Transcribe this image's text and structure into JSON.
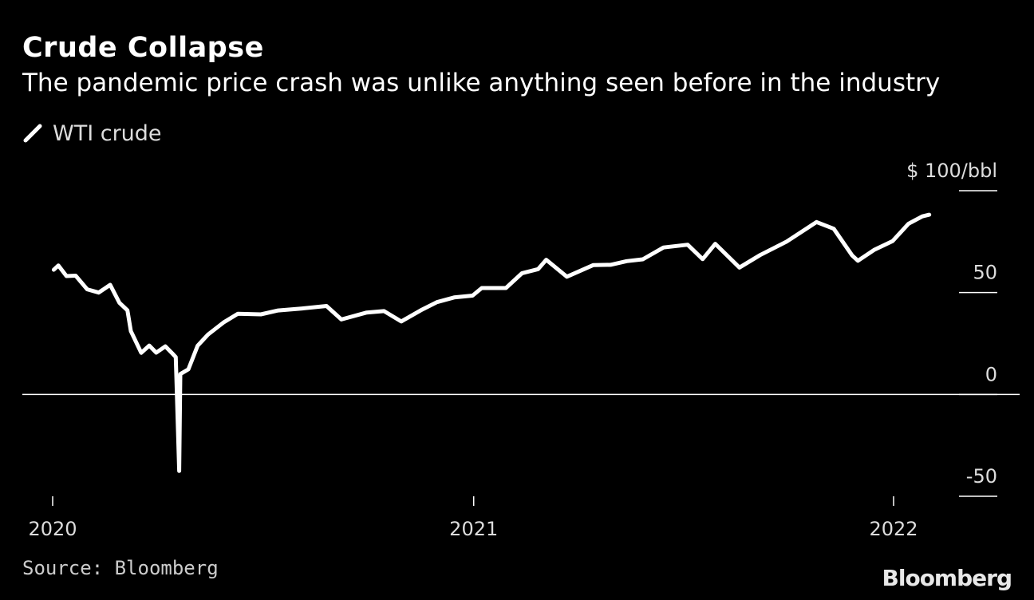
{
  "header": {
    "title": "Crude Collapse",
    "subtitle": "The pandemic price crash was unlike anything seen before in the industry"
  },
  "legend": {
    "label": "WTI crude",
    "icon": "line-swatch-icon"
  },
  "footer": {
    "source": "Source: Bloomberg",
    "brand": "Bloomberg"
  },
  "colors": {
    "background": "#000000",
    "line": "#ffffff",
    "axis": "#ffffff",
    "text": "#dddddd"
  },
  "chart_data": {
    "type": "line",
    "title": "Crude Collapse",
    "subtitle": "The pandemic price crash was unlike anything seen before in the industry",
    "xlabel": "",
    "ylabel": "",
    "ylim": [
      -50,
      100
    ],
    "xlim": [
      "2020-01",
      "2022-03"
    ],
    "y_ticks": [
      {
        "value": 100,
        "label": "$ 100/bbl"
      },
      {
        "value": 50,
        "label": "50"
      },
      {
        "value": 0,
        "label": "0"
      },
      {
        "value": -50,
        "label": "-50"
      }
    ],
    "x_ticks": [
      {
        "value": "2020-01-01",
        "label": "2020"
      },
      {
        "value": "2021-01-01",
        "label": "2021"
      },
      {
        "value": "2022-01-01",
        "label": "2022"
      }
    ],
    "zero_line": true,
    "grid": false,
    "legend_position": "top-left",
    "series": [
      {
        "name": "WTI crude",
        "points": [
          [
            "2020-01-02",
            61.2
          ],
          [
            "2020-01-06",
            63.3
          ],
          [
            "2020-01-13",
            58.1
          ],
          [
            "2020-01-21",
            58.3
          ],
          [
            "2020-01-31",
            51.6
          ],
          [
            "2020-02-10",
            50.0
          ],
          [
            "2020-02-20",
            53.8
          ],
          [
            "2020-02-28",
            45.0
          ],
          [
            "2020-03-06",
            41.3
          ],
          [
            "2020-03-09",
            31.1
          ],
          [
            "2020-03-18",
            20.4
          ],
          [
            "2020-03-25",
            24.0
          ],
          [
            "2020-03-31",
            20.5
          ],
          [
            "2020-04-08",
            23.6
          ],
          [
            "2020-04-14",
            20.1
          ],
          [
            "2020-04-17",
            18.3
          ],
          [
            "2020-04-20",
            -37.6
          ],
          [
            "2020-04-21",
            10.0
          ],
          [
            "2020-04-28",
            12.3
          ],
          [
            "2020-05-06",
            23.9
          ],
          [
            "2020-05-15",
            29.4
          ],
          [
            "2020-05-29",
            35.5
          ],
          [
            "2020-06-10",
            39.6
          ],
          [
            "2020-06-30",
            39.3
          ],
          [
            "2020-07-15",
            41.2
          ],
          [
            "2020-08-05",
            42.2
          ],
          [
            "2020-08-26",
            43.4
          ],
          [
            "2020-09-08",
            36.8
          ],
          [
            "2020-09-30",
            40.2
          ],
          [
            "2020-10-15",
            40.9
          ],
          [
            "2020-10-30",
            35.8
          ],
          [
            "2020-11-16",
            41.3
          ],
          [
            "2020-11-30",
            45.3
          ],
          [
            "2020-12-15",
            47.6
          ],
          [
            "2020-12-31",
            48.5
          ],
          [
            "2021-01-08",
            52.2
          ],
          [
            "2021-01-29",
            52.2
          ],
          [
            "2021-02-12",
            59.5
          ],
          [
            "2021-02-26",
            61.5
          ],
          [
            "2021-03-05",
            66.1
          ],
          [
            "2021-03-23",
            57.8
          ],
          [
            "2021-04-15",
            63.5
          ],
          [
            "2021-04-30",
            63.6
          ],
          [
            "2021-05-14",
            65.4
          ],
          [
            "2021-05-28",
            66.3
          ],
          [
            "2021-06-15",
            72.1
          ],
          [
            "2021-07-06",
            73.5
          ],
          [
            "2021-07-19",
            66.4
          ],
          [
            "2021-07-30",
            73.9
          ],
          [
            "2021-08-20",
            62.3
          ],
          [
            "2021-09-07",
            68.4
          ],
          [
            "2021-09-30",
            75.0
          ],
          [
            "2021-10-26",
            84.6
          ],
          [
            "2021-11-10",
            81.3
          ],
          [
            "2021-11-26",
            68.2
          ],
          [
            "2021-12-01",
            65.6
          ],
          [
            "2021-12-15",
            70.9
          ],
          [
            "2021-12-31",
            75.2
          ],
          [
            "2022-01-14",
            83.8
          ],
          [
            "2022-01-26",
            87.4
          ],
          [
            "2022-02-01",
            88.2
          ]
        ]
      }
    ]
  }
}
